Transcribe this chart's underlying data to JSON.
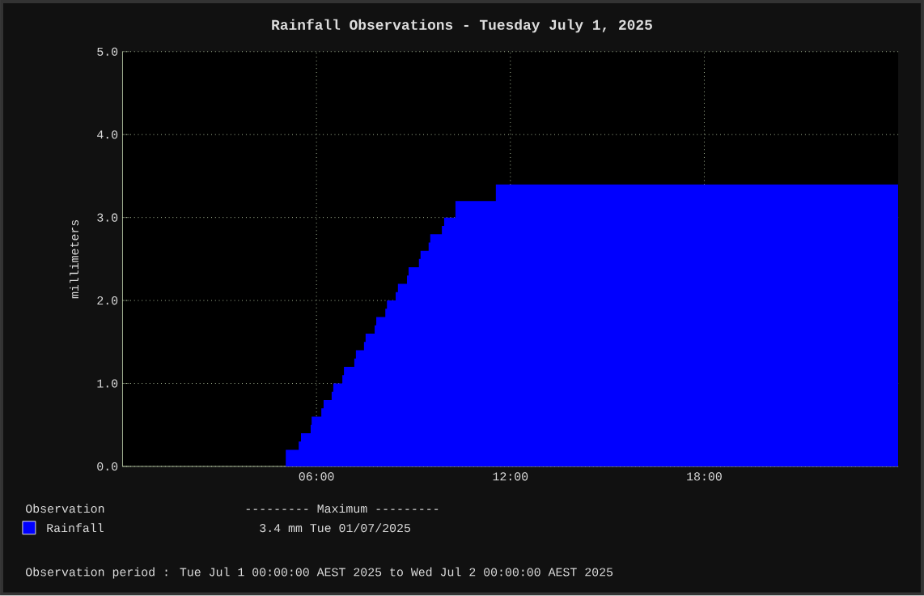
{
  "chart_data": {
    "type": "area",
    "title": "Rainfall Observations - Tuesday July 1, 2025",
    "ylabel": "millimeters",
    "x": [
      0,
      5.05,
      5.05,
      5.45,
      5.45,
      5.52,
      5.52,
      5.82,
      5.82,
      5.85,
      5.85,
      6.15,
      6.15,
      6.22,
      6.22,
      6.47,
      6.47,
      6.52,
      6.52,
      6.8,
      6.8,
      6.85,
      6.85,
      7.17,
      7.17,
      7.22,
      7.22,
      7.47,
      7.47,
      7.52,
      7.52,
      7.8,
      7.8,
      7.85,
      7.85,
      8.13,
      8.13,
      8.18,
      8.18,
      8.45,
      8.45,
      8.52,
      8.52,
      8.8,
      8.8,
      8.85,
      8.85,
      9.17,
      9.17,
      9.22,
      9.22,
      9.47,
      9.47,
      9.52,
      9.52,
      9.88,
      9.88,
      9.95,
      9.95,
      10.3,
      10.3,
      11.55,
      11.55,
      24
    ],
    "series": [
      {
        "name": "Rainfall",
        "color": "#0000ff",
        "values": [
          0,
          0,
          0.2,
          0.2,
          0.3,
          0.3,
          0.4,
          0.4,
          0.5,
          0.5,
          0.6,
          0.6,
          0.7,
          0.7,
          0.8,
          0.8,
          0.9,
          0.9,
          1.0,
          1.0,
          1.1,
          1.1,
          1.2,
          1.2,
          1.3,
          1.3,
          1.4,
          1.4,
          1.5,
          1.5,
          1.6,
          1.6,
          1.7,
          1.7,
          1.8,
          1.8,
          1.9,
          1.9,
          2.0,
          2.0,
          2.1,
          2.1,
          2.2,
          2.2,
          2.3,
          2.3,
          2.4,
          2.4,
          2.5,
          2.5,
          2.6,
          2.6,
          2.7,
          2.7,
          2.8,
          2.8,
          2.9,
          2.9,
          3.0,
          3.0,
          3.2,
          3.2,
          3.4,
          3.4
        ]
      }
    ],
    "xlim": [
      0,
      24
    ],
    "xticks": [
      {
        "value": 6,
        "label": "06:00"
      },
      {
        "value": 12,
        "label": "12:00"
      },
      {
        "value": 18,
        "label": "18:00"
      }
    ],
    "ylim": [
      0,
      5
    ],
    "yticks": [
      {
        "value": 0,
        "label": "0.0"
      },
      {
        "value": 1,
        "label": "1.0"
      },
      {
        "value": 2,
        "label": "2.0"
      },
      {
        "value": 3,
        "label": "3.0"
      },
      {
        "value": 4,
        "label": "4.0"
      },
      {
        "value": 5,
        "label": "5.0"
      }
    ],
    "grid": true,
    "legend": "bottom",
    "annotations": [
      "Observation",
      "--------- Maximum ---------",
      "3.4 mm  Tue 01/07/2025",
      "Observation period : Tue Jul 1 00:00:00 AEST 2025 to Wed Jul 2 00:00:00 AEST 2025"
    ]
  }
}
